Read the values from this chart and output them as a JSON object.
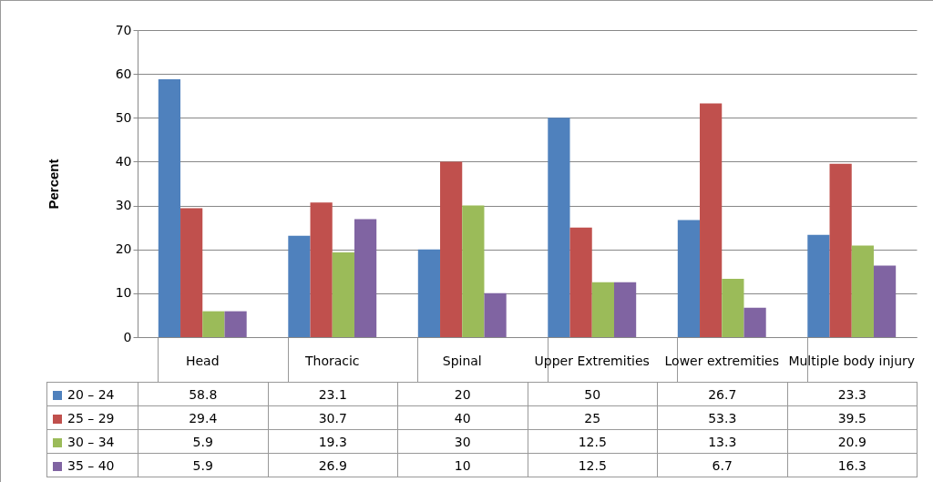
{
  "chart_data": {
    "type": "bar",
    "ylabel": "Percent",
    "categories": [
      "Head",
      "Thoracic",
      "Spinal",
      "Upper Extremities",
      "Lower extremities",
      "Multiple body injury"
    ],
    "series": [
      {
        "name": "20 – 24",
        "color": "#4f81bd",
        "values": [
          58.8,
          23.1,
          20,
          50,
          26.7,
          23.3
        ]
      },
      {
        "name": "25 – 29",
        "color": "#c0504d",
        "values": [
          29.4,
          30.7,
          40,
          25,
          53.3,
          39.5
        ]
      },
      {
        "name": "30 – 34",
        "color": "#9bbb59",
        "values": [
          5.9,
          19.3,
          30,
          12.5,
          13.3,
          20.9
        ]
      },
      {
        "name": "35 – 40",
        "color": "#8064a2",
        "values": [
          5.9,
          26.9,
          10,
          12.5,
          6.7,
          16.3
        ]
      }
    ],
    "ylim": [
      0,
      70
    ],
    "yticks": [
      0,
      10,
      20,
      30,
      40,
      50,
      60,
      70
    ],
    "grid": "y",
    "legend": "bottom",
    "data_labels": true
  }
}
